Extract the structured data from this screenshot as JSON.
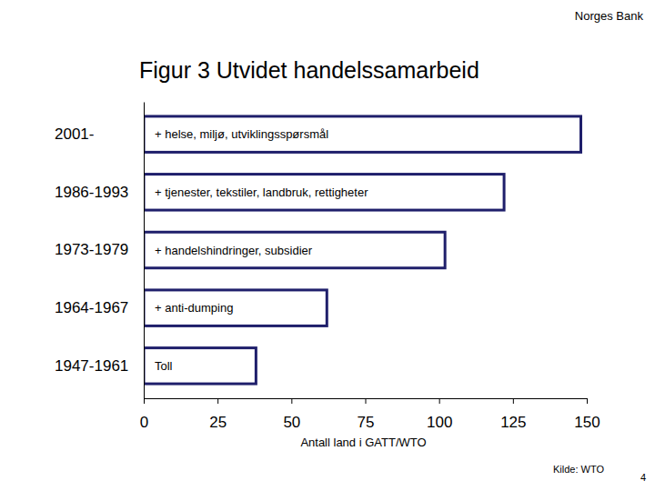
{
  "chart_data": {
    "type": "bar",
    "orientation": "horizontal",
    "title": "Figur 3 Utvidet handelssamarbeid",
    "header": "Norges Bank",
    "x_label": "Antall land i GATT/WTO",
    "source": "Kilde: WTO",
    "page_number": "4",
    "categories": [
      "2001-",
      "1986-1993",
      "1973-1979",
      "1964-1967",
      "1947-1961"
    ],
    "values": [
      148,
      122,
      102,
      62,
      38
    ],
    "annotations": [
      "+ helse, miljø, utviklingsspørsmål",
      "+ tjenester, tekstiler, landbruk, rettigheter",
      "+ handelshindringer, subsidier",
      "+ anti-dumping",
      "Toll"
    ],
    "color": "#1f1f6b",
    "xlim": [
      0,
      150
    ],
    "xticks": [
      0,
      25,
      50,
      75,
      100,
      125,
      150
    ],
    "grid": false,
    "data_labels": false
  }
}
